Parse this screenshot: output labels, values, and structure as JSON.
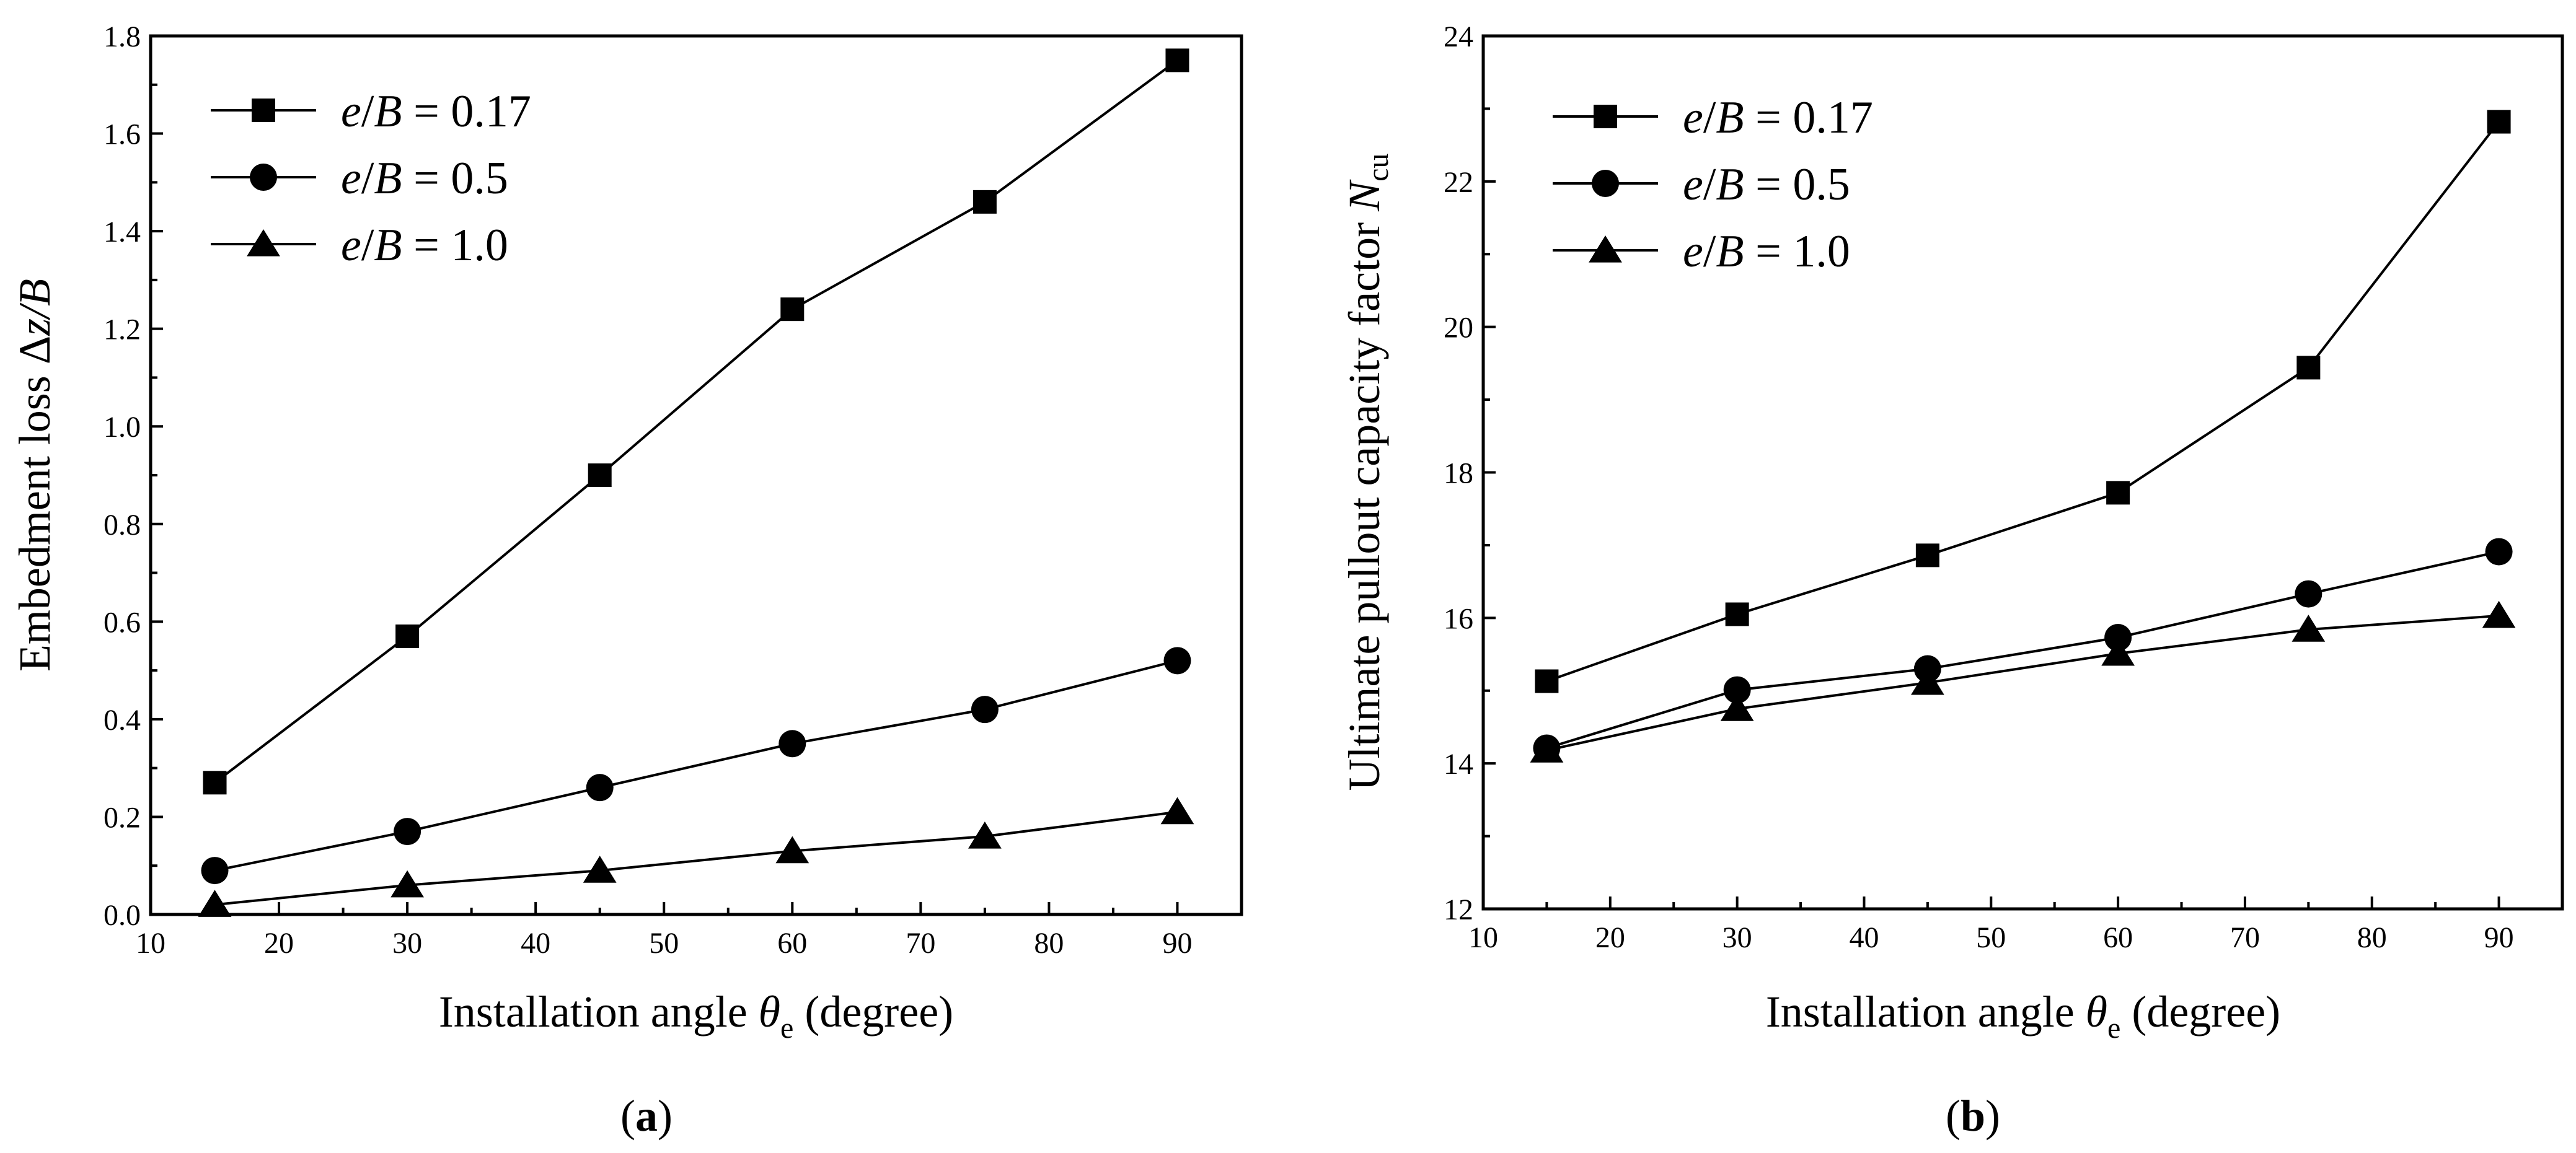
{
  "chart_data": [
    {
      "type": "line",
      "panel_label": "a",
      "title": "",
      "xlabel": "Installation angle θe (degree)",
      "xlabel_main": "Installation angle ",
      "xlabel_symbol": "θ",
      "xlabel_sub": "e",
      "xlabel_tail": " (degree)",
      "ylabel": "Embedment loss Δz/B",
      "ylabel_main": "Embedment loss Δ",
      "ylabel_var": "z/B",
      "xlim": [
        10,
        95
      ],
      "ylim": [
        0.0,
        1.8
      ],
      "x_ticks": [
        "10",
        "20",
        "30",
        "40",
        "50",
        "60",
        "70",
        "80",
        "90"
      ],
      "y_ticks": [
        "0.0",
        "0.2",
        "0.4",
        "0.6",
        "0.8",
        "1.0",
        "1.2",
        "1.4",
        "1.6",
        "1.8"
      ],
      "legend_position": "top-left",
      "x": [
        15,
        30,
        45,
        60,
        75,
        90
      ],
      "series": [
        {
          "name": "e/B = 0.17",
          "value_label": " = 0.17",
          "marker": "square",
          "values": [
            0.27,
            0.57,
            0.9,
            1.24,
            1.46,
            1.75
          ]
        },
        {
          "name": "e/B = 0.5",
          "value_label": " = 0.5",
          "marker": "circle",
          "values": [
            0.09,
            0.17,
            0.26,
            0.35,
            0.42,
            0.52
          ]
        },
        {
          "name": "e/B = 1.0",
          "value_label": " = 1.0",
          "marker": "triangle",
          "values": [
            0.02,
            0.06,
            0.09,
            0.13,
            0.16,
            0.21
          ]
        }
      ]
    },
    {
      "type": "line",
      "panel_label": "b",
      "title": "",
      "xlabel": "Installation angle θe (degree)",
      "xlabel_main": "Installation angle ",
      "xlabel_symbol": "θ",
      "xlabel_sub": "e",
      "xlabel_tail": " (degree)",
      "ylabel": "Ultimate pullout capacity factor Ncu",
      "ylabel_main": "Ultimate pullout capacity factor ",
      "ylabel_var": "N",
      "ylabel_sub": "cu",
      "xlim": [
        10,
        95
      ],
      "ylim": [
        12,
        24
      ],
      "x_ticks": [
        "10",
        "20",
        "30",
        "40",
        "50",
        "60",
        "70",
        "80",
        "90"
      ],
      "y_ticks": [
        "12",
        "14",
        "16",
        "18",
        "20",
        "22",
        "24"
      ],
      "legend_position": "top-left",
      "x": [
        15,
        30,
        45,
        60,
        75,
        90
      ],
      "series": [
        {
          "name": "e/B = 0.17",
          "value_label": " = 0.17",
          "marker": "square",
          "values": [
            15.13,
            16.05,
            16.86,
            17.72,
            19.44,
            22.82
          ]
        },
        {
          "name": "e/B = 0.5",
          "value_label": " = 0.5",
          "marker": "circle",
          "values": [
            14.21,
            15.01,
            15.3,
            15.73,
            16.33,
            16.91
          ]
        },
        {
          "name": "e/B = 1.0",
          "value_label": " = 1.0",
          "marker": "triangle",
          "values": [
            14.18,
            14.75,
            15.11,
            15.51,
            15.84,
            16.03
          ]
        }
      ]
    }
  ]
}
